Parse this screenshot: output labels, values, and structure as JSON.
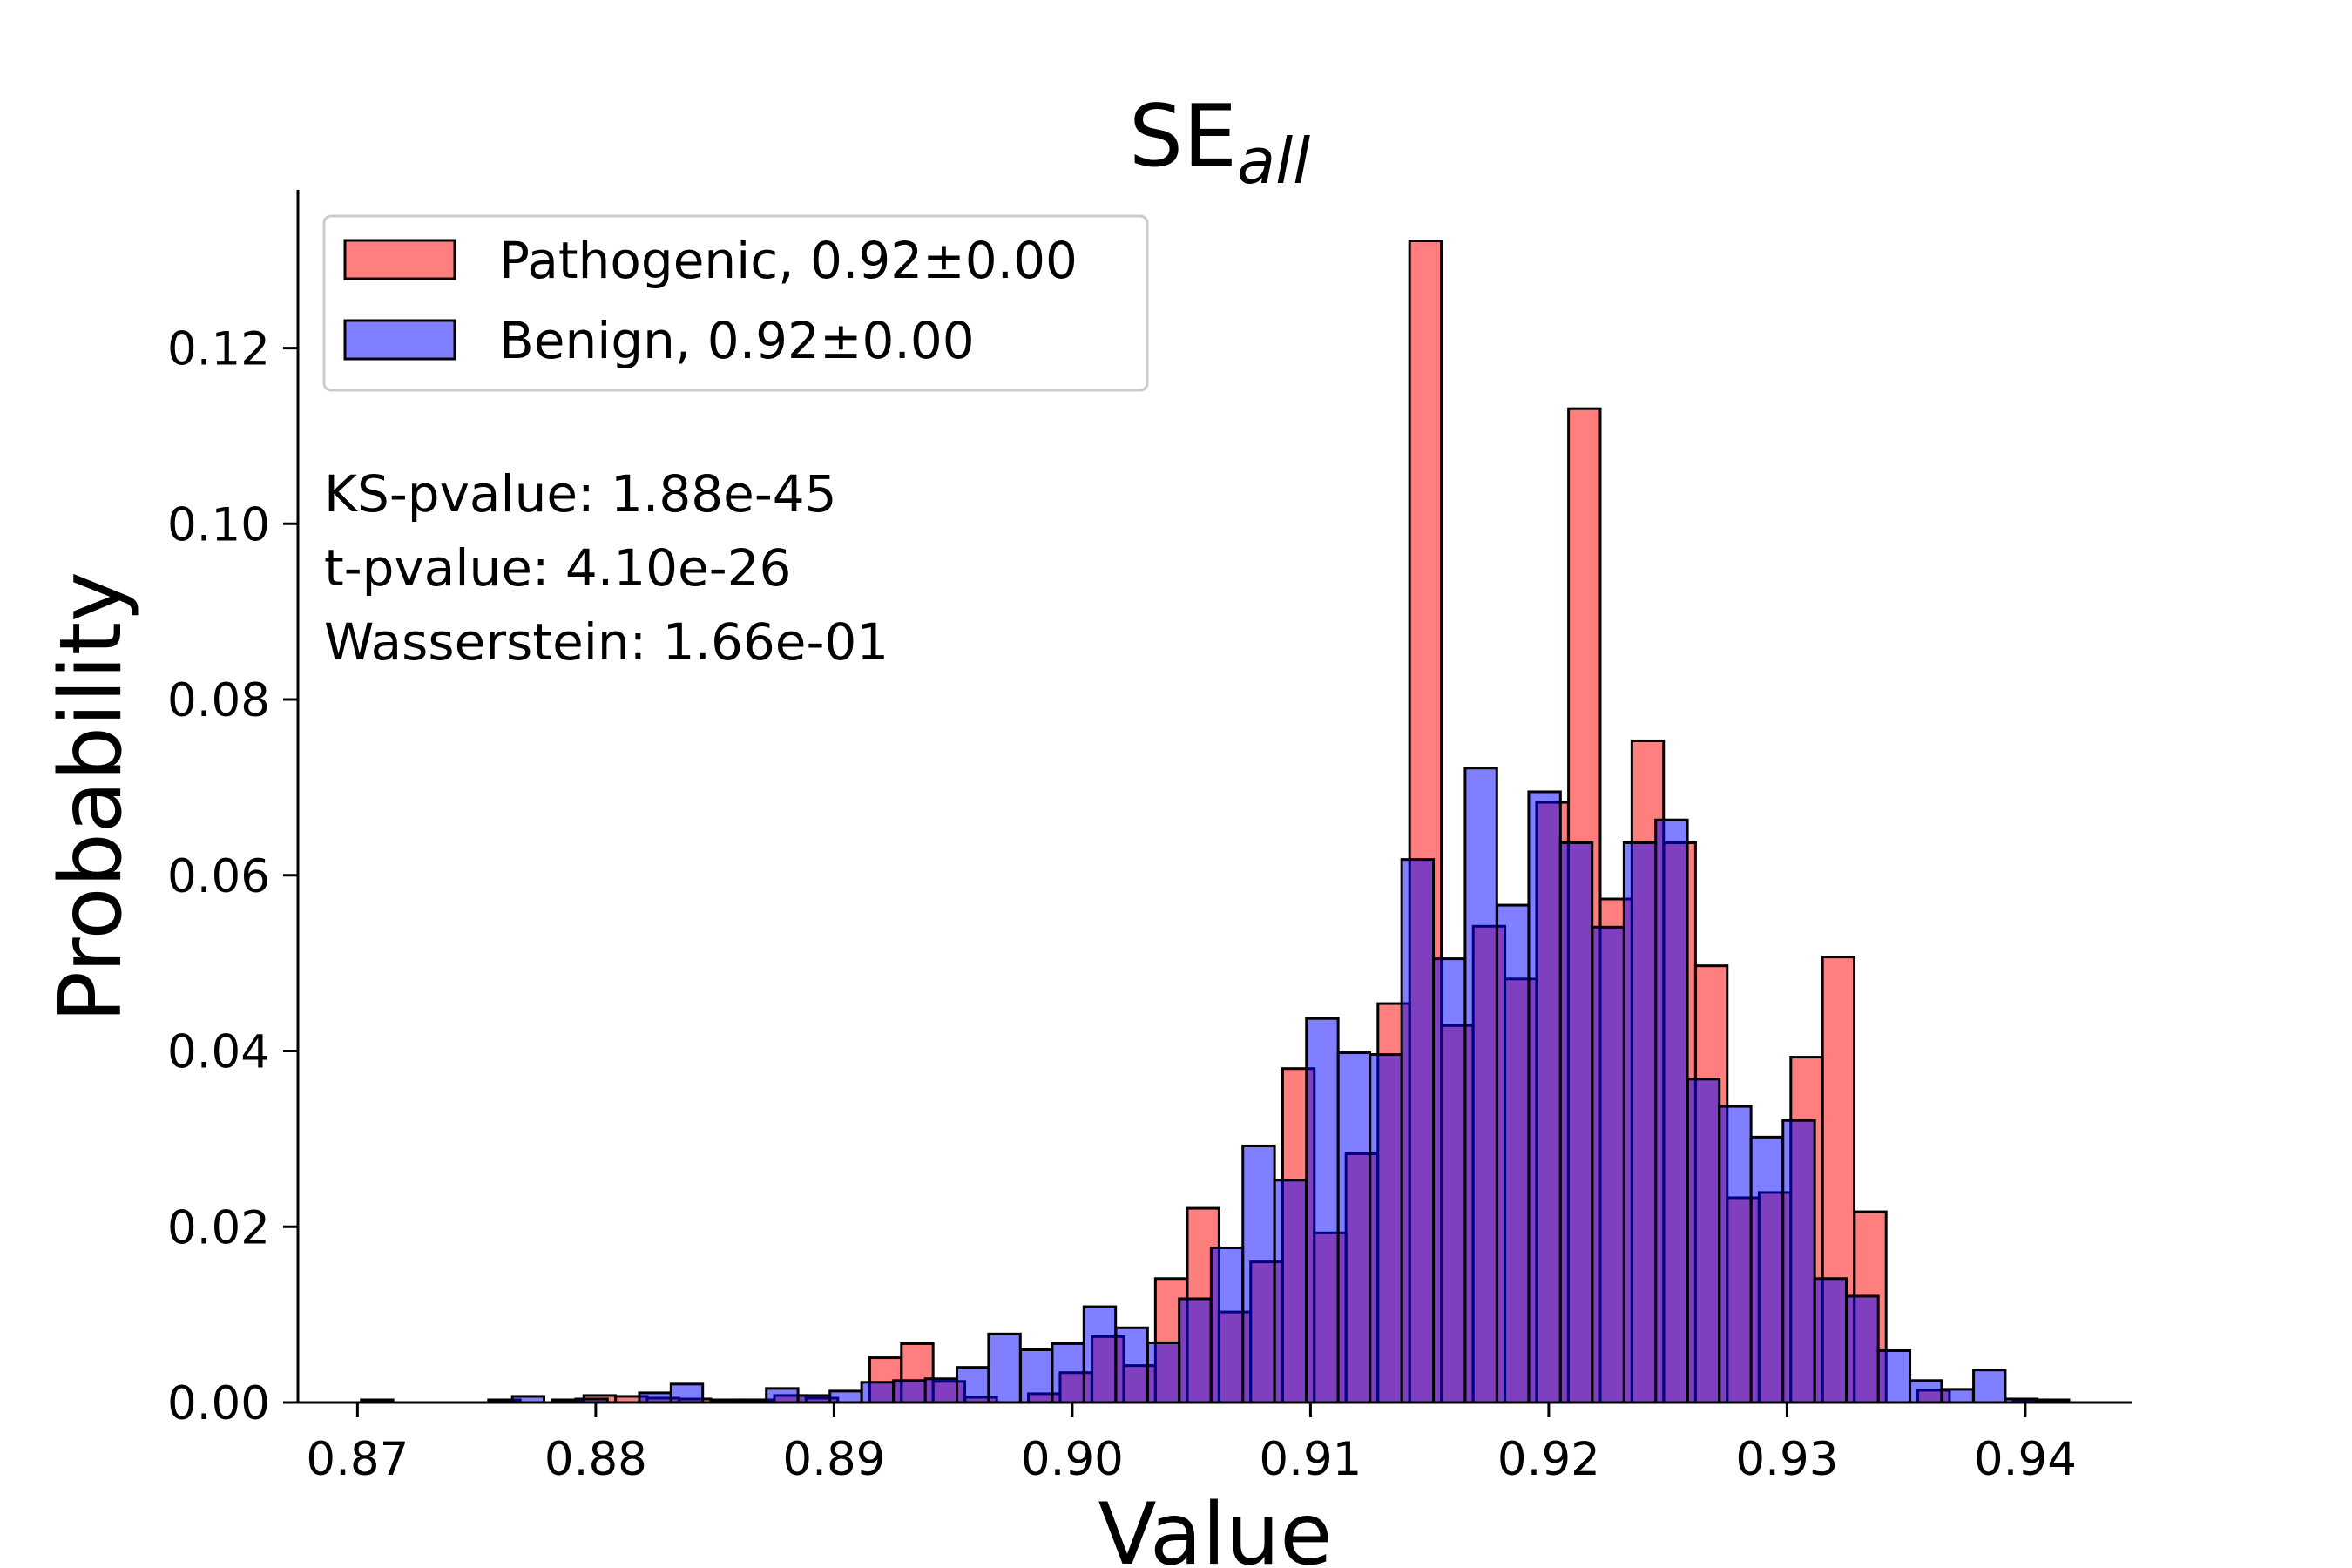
{
  "chart_data": {
    "type": "bar",
    "subtype": "overlaid-histogram",
    "title": "SE",
    "title_subscript": "all",
    "xlabel": "Value",
    "ylabel": "Probability",
    "xlim": [
      0.8675,
      0.9445
    ],
    "ylim": [
      0,
      0.138
    ],
    "xticks": [
      0.87,
      0.88,
      0.89,
      0.9,
      0.91,
      0.92,
      0.93,
      0.94
    ],
    "xtick_labels": [
      "0.87",
      "0.88",
      "0.89",
      "0.90",
      "0.91",
      "0.92",
      "0.93",
      "0.94"
    ],
    "yticks": [
      0,
      0.02,
      0.04,
      0.06,
      0.08,
      0.1,
      0.12
    ],
    "ytick_labels": [
      "0.00",
      "0.02",
      "0.04",
      "0.06",
      "0.08",
      "0.10",
      "0.12"
    ],
    "legend_position": "top-left",
    "grid": false,
    "stats": [
      "KS-pvalue: 1.88e-45",
      "t-pvalue: 4.10e-26",
      "Wasserstein: 1.66e-01"
    ],
    "series": [
      {
        "name": "Pathogenic, 0.92±0.00",
        "color": "#ff0000",
        "bin_width": 0.00133,
        "bins": [
          [
            0.87016,
            0.0003
          ],
          [
            0.8755,
            0.0003
          ],
          [
            0.87816,
            0.0003
          ],
          [
            0.8795,
            0.0008
          ],
          [
            0.88083,
            0.0007
          ],
          [
            0.88216,
            0.0005
          ],
          [
            0.8835,
            0.0004
          ],
          [
            0.88483,
            0.0003
          ],
          [
            0.88616,
            0.0003
          ],
          [
            0.8875,
            0.0008
          ],
          [
            0.88883,
            0.0005
          ],
          [
            0.8915,
            0.0051
          ],
          [
            0.89283,
            0.0067
          ],
          [
            0.89416,
            0.0024
          ],
          [
            0.8955,
            0.0006
          ],
          [
            0.89816,
            0.001
          ],
          [
            0.89949,
            0.0034
          ],
          [
            0.90083,
            0.0075
          ],
          [
            0.90216,
            0.0042
          ],
          [
            0.90349,
            0.0141
          ],
          [
            0.90483,
            0.0221
          ],
          [
            0.90616,
            0.0103
          ],
          [
            0.90749,
            0.016
          ],
          [
            0.90883,
            0.038
          ],
          [
            0.91016,
            0.0193
          ],
          [
            0.91149,
            0.0283
          ],
          [
            0.91283,
            0.0454
          ],
          [
            0.91416,
            0.1322
          ],
          [
            0.91549,
            0.0429
          ],
          [
            0.91683,
            0.0542
          ],
          [
            0.91816,
            0.0482
          ],
          [
            0.91949,
            0.0683
          ],
          [
            0.92083,
            0.1131
          ],
          [
            0.92216,
            0.0573
          ],
          [
            0.92349,
            0.0753
          ],
          [
            0.92483,
            0.0637
          ],
          [
            0.92616,
            0.0497
          ],
          [
            0.92749,
            0.0233
          ],
          [
            0.92883,
            0.0239
          ],
          [
            0.93016,
            0.0393
          ],
          [
            0.93149,
            0.0507
          ],
          [
            0.93283,
            0.0217
          ],
          [
            0.93549,
            0.0014
          ],
          [
            0.93949,
            0.0003
          ]
        ]
      },
      {
        "name": "Benign, 0.92±0.00",
        "color": "#0000ff",
        "bin_width": 0.00133,
        "bins": [
          [
            0.8765,
            0.0007
          ],
          [
            0.87916,
            0.0004
          ],
          [
            0.88183,
            0.0011
          ],
          [
            0.88316,
            0.0021
          ],
          [
            0.88583,
            0.0003
          ],
          [
            0.88716,
            0.0016
          ],
          [
            0.88849,
            0.0008
          ],
          [
            0.88983,
            0.0013
          ],
          [
            0.89116,
            0.0023
          ],
          [
            0.8925,
            0.0025
          ],
          [
            0.89383,
            0.0027
          ],
          [
            0.89516,
            0.004
          ],
          [
            0.89649,
            0.0078
          ],
          [
            0.89783,
            0.006
          ],
          [
            0.89916,
            0.0067
          ],
          [
            0.90049,
            0.0109
          ],
          [
            0.90183,
            0.0085
          ],
          [
            0.90316,
            0.0068
          ],
          [
            0.90449,
            0.0118
          ],
          [
            0.90583,
            0.0176
          ],
          [
            0.90716,
            0.0292
          ],
          [
            0.90849,
            0.0253
          ],
          [
            0.90983,
            0.0437
          ],
          [
            0.91116,
            0.0398
          ],
          [
            0.9125,
            0.0396
          ],
          [
            0.91383,
            0.0618
          ],
          [
            0.91516,
            0.0505
          ],
          [
            0.91649,
            0.0722
          ],
          [
            0.91783,
            0.0566
          ],
          [
            0.91916,
            0.0695
          ],
          [
            0.92049,
            0.0637
          ],
          [
            0.92183,
            0.0541
          ],
          [
            0.92316,
            0.0637
          ],
          [
            0.92449,
            0.0663
          ],
          [
            0.92583,
            0.0368
          ],
          [
            0.92716,
            0.0337
          ],
          [
            0.92849,
            0.0302
          ],
          [
            0.92983,
            0.0321
          ],
          [
            0.93116,
            0.0141
          ],
          [
            0.9325,
            0.0121
          ],
          [
            0.93383,
            0.0059
          ],
          [
            0.93516,
            0.0025
          ],
          [
            0.93649,
            0.0015
          ],
          [
            0.93783,
            0.0037
          ],
          [
            0.93916,
            0.0004
          ],
          [
            0.9405,
            0.0003
          ]
        ]
      }
    ]
  }
}
